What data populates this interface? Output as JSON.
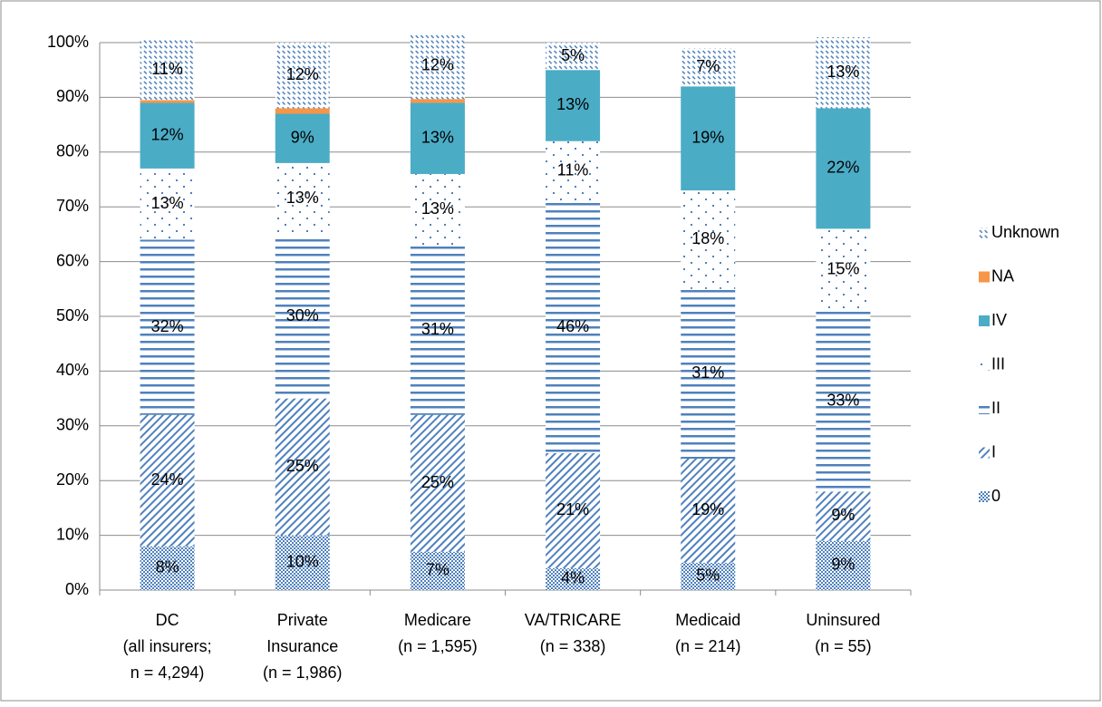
{
  "chart_data": {
    "type": "stacked_bar",
    "categories": [
      [
        "DC",
        "(all insurers;",
        "n = 4,294)"
      ],
      [
        "Private",
        "Insurance",
        "(n = 1,986)"
      ],
      [
        "Medicare",
        "(n = 1,595)"
      ],
      [
        "VA/TRICARE",
        "(n = 338)"
      ],
      [
        "Medicaid",
        "(n = 214)"
      ],
      [
        "Uninsured",
        "(n = 55)"
      ]
    ],
    "series": [
      {
        "name": "0",
        "color": "#4f81bd",
        "pattern": "checker",
        "values": [
          8,
          10,
          7,
          4,
          5,
          9
        ],
        "value_labels": [
          "8%",
          "10%",
          "7%",
          "4%",
          "5%",
          "9%"
        ]
      },
      {
        "name": "I",
        "color": "#4f81bd",
        "pattern": "diagonal",
        "values": [
          24,
          25,
          25,
          21,
          19,
          9
        ],
        "value_labels": [
          "24%",
          "25%",
          "25%",
          "21%",
          "19%",
          "9%"
        ]
      },
      {
        "name": "II",
        "color": "#4f81bd",
        "pattern": "horizontal",
        "values": [
          32,
          30,
          31,
          46,
          31,
          33
        ],
        "value_labels": [
          "32%",
          "30%",
          "31%",
          "46%",
          "31%",
          "33%"
        ]
      },
      {
        "name": "III",
        "color": "#4f81bd",
        "pattern": "dots",
        "values": [
          13,
          13,
          13,
          11,
          18,
          15
        ],
        "value_labels": [
          "13%",
          "13%",
          "13%",
          "11%",
          "18%",
          "15%"
        ]
      },
      {
        "name": "IV",
        "color": "#4bacc6",
        "pattern": "solid",
        "values": [
          12,
          9,
          13,
          13,
          19,
          22
        ],
        "value_labels": [
          "12%",
          "9%",
          "13%",
          "13%",
          "19%",
          "22%"
        ]
      },
      {
        "name": "NA",
        "color": "#f79646",
        "pattern": "solid",
        "values": [
          0.5,
          1,
          0.7,
          0,
          0,
          0
        ]
      },
      {
        "name": "Unknown",
        "color": "#4f81bd",
        "pattern": "dashdiag",
        "values": [
          11,
          12,
          12,
          5,
          7,
          13
        ],
        "value_labels": [
          "11%",
          "12%",
          "12%",
          "5%",
          "7%",
          "13%"
        ]
      }
    ],
    "ylim": [
      0,
      100
    ],
    "yticks": [
      {
        "value": 0,
        "label": "0%"
      },
      {
        "value": 10,
        "label": "10%"
      },
      {
        "value": 20,
        "label": "20%"
      },
      {
        "value": 30,
        "label": "30%"
      },
      {
        "value": 40,
        "label": "40%"
      },
      {
        "value": 50,
        "label": "50%"
      },
      {
        "value": 60,
        "label": "60%"
      },
      {
        "value": 70,
        "label": "70%"
      },
      {
        "value": 80,
        "label": "80%"
      },
      {
        "value": 90,
        "label": "90%"
      },
      {
        "value": 100,
        "label": "100%"
      }
    ],
    "grid": true,
    "legend": "right"
  }
}
